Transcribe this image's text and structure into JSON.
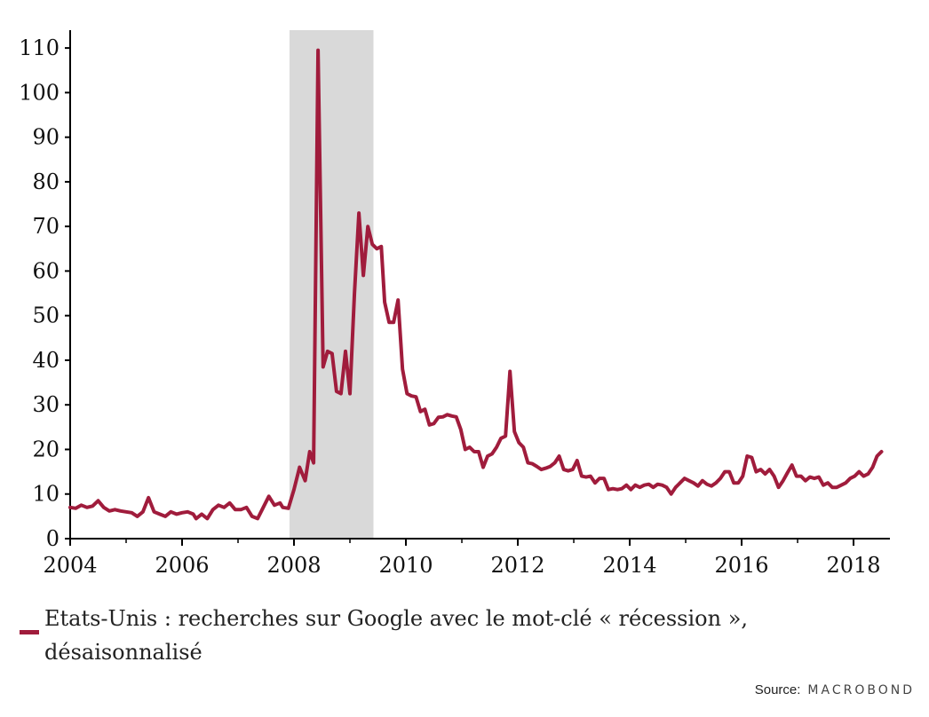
{
  "chart_data": {
    "type": "line",
    "title": "",
    "xlabel": "",
    "ylabel": "",
    "xlim": [
      2004.0,
      2018.65
    ],
    "ylim": [
      0,
      114
    ],
    "x_ticks": [
      "2004",
      "2006",
      "2008",
      "2010",
      "2012",
      "2014",
      "2016",
      "2018"
    ],
    "y_ticks": [
      "0",
      "10",
      "20",
      "30",
      "40",
      "50",
      "60",
      "70",
      "80",
      "90",
      "100",
      "110"
    ],
    "recession_shading": {
      "start": 2007.92,
      "end": 2009.42,
      "color": "#d9d9d9"
    },
    "series": [
      {
        "name": "Etats-Unis : recherches sur Google avec le mot-clé « récession », désaisonnalisé",
        "color": "#a01c3c",
        "points": [
          [
            2004.0,
            7
          ],
          [
            2004.1,
            6.8
          ],
          [
            2004.2,
            7.5
          ],
          [
            2004.3,
            7
          ],
          [
            2004.4,
            7.3
          ],
          [
            2004.5,
            8.5
          ],
          [
            2004.6,
            7
          ],
          [
            2004.7,
            6.2
          ],
          [
            2004.8,
            6.5
          ],
          [
            2004.9,
            6.2
          ],
          [
            2005.0,
            6
          ],
          [
            2005.1,
            5.8
          ],
          [
            2005.2,
            5
          ],
          [
            2005.3,
            6
          ],
          [
            2005.4,
            9.2
          ],
          [
            2005.5,
            6
          ],
          [
            2005.6,
            5.5
          ],
          [
            2005.7,
            5
          ],
          [
            2005.8,
            6
          ],
          [
            2005.9,
            5.5
          ],
          [
            2006.0,
            5.8
          ],
          [
            2006.1,
            6
          ],
          [
            2006.2,
            5.5
          ],
          [
            2006.25,
            4.5
          ],
          [
            2006.35,
            5.5
          ],
          [
            2006.45,
            4.5
          ],
          [
            2006.55,
            6.5
          ],
          [
            2006.65,
            7.5
          ],
          [
            2006.75,
            7
          ],
          [
            2006.85,
            8
          ],
          [
            2006.95,
            6.5
          ],
          [
            2007.05,
            6.5
          ],
          [
            2007.15,
            7
          ],
          [
            2007.25,
            5
          ],
          [
            2007.35,
            4.5
          ],
          [
            2007.45,
            7
          ],
          [
            2007.55,
            9.5
          ],
          [
            2007.65,
            7.5
          ],
          [
            2007.75,
            8
          ],
          [
            2007.8,
            7
          ],
          [
            2007.9,
            6.8
          ],
          [
            2008.0,
            11
          ],
          [
            2008.1,
            16
          ],
          [
            2008.2,
            13
          ],
          [
            2008.28,
            19.5
          ],
          [
            2008.35,
            17
          ],
          [
            2008.43,
            109.5
          ],
          [
            2008.52,
            38.5
          ],
          [
            2008.6,
            42
          ],
          [
            2008.68,
            41.5
          ],
          [
            2008.76,
            33
          ],
          [
            2008.84,
            32.5
          ],
          [
            2008.92,
            42
          ],
          [
            2009.0,
            32.5
          ],
          [
            2009.08,
            55
          ],
          [
            2009.16,
            73
          ],
          [
            2009.24,
            59
          ],
          [
            2009.32,
            70
          ],
          [
            2009.4,
            66
          ],
          [
            2009.48,
            65
          ],
          [
            2009.56,
            65.5
          ],
          [
            2009.62,
            53
          ],
          [
            2009.7,
            48.5
          ],
          [
            2009.78,
            48.5
          ],
          [
            2009.86,
            53.5
          ],
          [
            2009.94,
            38
          ],
          [
            2010.02,
            32.5
          ],
          [
            2010.1,
            32
          ],
          [
            2010.18,
            31.8
          ],
          [
            2010.26,
            28.5
          ],
          [
            2010.34,
            29
          ],
          [
            2010.42,
            25.5
          ],
          [
            2010.5,
            25.8
          ],
          [
            2010.58,
            27.2
          ],
          [
            2010.66,
            27.3
          ],
          [
            2010.74,
            27.8
          ],
          [
            2010.82,
            27.5
          ],
          [
            2010.9,
            27.3
          ],
          [
            2010.98,
            24.5
          ],
          [
            2011.06,
            20
          ],
          [
            2011.14,
            20.5
          ],
          [
            2011.22,
            19.5
          ],
          [
            2011.3,
            19.5
          ],
          [
            2011.38,
            16
          ],
          [
            2011.46,
            18.5
          ],
          [
            2011.54,
            19
          ],
          [
            2011.62,
            20.5
          ],
          [
            2011.7,
            22.5
          ],
          [
            2011.78,
            23
          ],
          [
            2011.86,
            37.5
          ],
          [
            2011.94,
            24
          ],
          [
            2012.02,
            21.5
          ],
          [
            2012.1,
            20.5
          ],
          [
            2012.18,
            17
          ],
          [
            2012.26,
            16.8
          ],
          [
            2012.34,
            16.2
          ],
          [
            2012.42,
            15.5
          ],
          [
            2012.5,
            15.8
          ],
          [
            2012.58,
            16.2
          ],
          [
            2012.66,
            17
          ],
          [
            2012.74,
            18.5
          ],
          [
            2012.82,
            15.5
          ],
          [
            2012.9,
            15.2
          ],
          [
            2012.98,
            15.5
          ],
          [
            2013.06,
            17.5
          ],
          [
            2013.14,
            14
          ],
          [
            2013.22,
            13.8
          ],
          [
            2013.3,
            14
          ],
          [
            2013.38,
            12.5
          ],
          [
            2013.46,
            13.5
          ],
          [
            2013.54,
            13.5
          ],
          [
            2013.62,
            11
          ],
          [
            2013.7,
            11.2
          ],
          [
            2013.78,
            11
          ],
          [
            2013.86,
            11.2
          ],
          [
            2013.94,
            12
          ],
          [
            2014.02,
            11
          ],
          [
            2014.1,
            12
          ],
          [
            2014.18,
            11.5
          ],
          [
            2014.26,
            12
          ],
          [
            2014.34,
            12.2
          ],
          [
            2014.42,
            11.5
          ],
          [
            2014.5,
            12.2
          ],
          [
            2014.58,
            12
          ],
          [
            2014.66,
            11.5
          ],
          [
            2014.74,
            10
          ],
          [
            2014.82,
            11.5
          ],
          [
            2014.9,
            12.5
          ],
          [
            2014.98,
            13.5
          ],
          [
            2015.06,
            13
          ],
          [
            2015.14,
            12.5
          ],
          [
            2015.22,
            11.8
          ],
          [
            2015.3,
            13
          ],
          [
            2015.38,
            12.2
          ],
          [
            2015.46,
            11.8
          ],
          [
            2015.54,
            12.5
          ],
          [
            2015.62,
            13.5
          ],
          [
            2015.7,
            15
          ],
          [
            2015.78,
            15
          ],
          [
            2015.86,
            12.5
          ],
          [
            2015.94,
            12.5
          ],
          [
            2016.02,
            14
          ],
          [
            2016.1,
            18.5
          ],
          [
            2016.18,
            18.2
          ],
          [
            2016.26,
            15
          ],
          [
            2016.34,
            15.5
          ],
          [
            2016.42,
            14.5
          ],
          [
            2016.5,
            15.5
          ],
          [
            2016.58,
            14
          ],
          [
            2016.66,
            11.5
          ],
          [
            2016.74,
            13
          ],
          [
            2016.82,
            14.8
          ],
          [
            2016.9,
            16.5
          ],
          [
            2016.98,
            14
          ],
          [
            2017.06,
            14
          ],
          [
            2017.14,
            13
          ],
          [
            2017.22,
            13.8
          ],
          [
            2017.3,
            13.5
          ],
          [
            2017.38,
            13.8
          ],
          [
            2017.46,
            12
          ],
          [
            2017.54,
            12.5
          ],
          [
            2017.62,
            11.5
          ],
          [
            2017.7,
            11.5
          ],
          [
            2017.78,
            12
          ],
          [
            2017.86,
            12.5
          ],
          [
            2017.94,
            13.5
          ],
          [
            2018.02,
            14
          ],
          [
            2018.1,
            15
          ],
          [
            2018.18,
            14
          ],
          [
            2018.26,
            14.5
          ],
          [
            2018.34,
            16
          ],
          [
            2018.42,
            18.5
          ],
          [
            2018.5,
            19.5
          ]
        ]
      }
    ]
  },
  "legend": {
    "label": "Etats-Unis : recherches sur Google avec le mot-clé « récession », désaisonnalisé"
  },
  "source": {
    "label": "Source:",
    "brand": "MACROBOND"
  }
}
